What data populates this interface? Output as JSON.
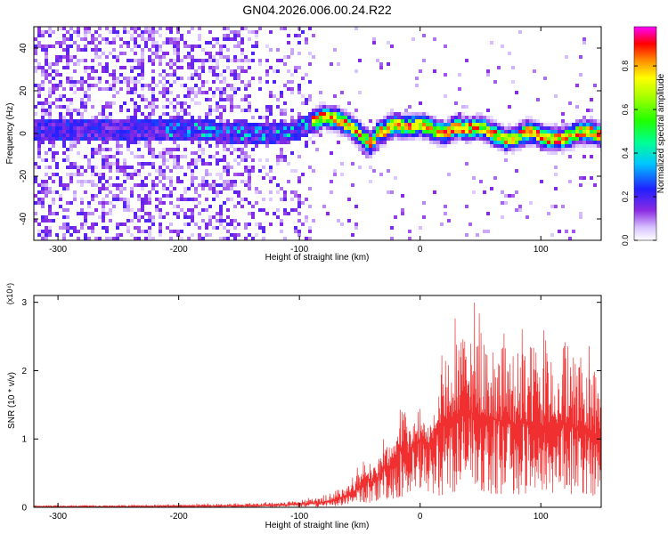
{
  "figure_title": "GN04.2026.006.00.24.R22",
  "chart_data": [
    {
      "type": "heatmap",
      "xlabel": "Height of straight line (km)",
      "ylabel": "Frequency (Hz)",
      "xlim": [
        -320,
        150
      ],
      "ylim": [
        -50,
        50
      ],
      "xticks": [
        -300,
        -200,
        -100,
        0,
        100
      ],
      "yticks": [
        -40,
        -20,
        0,
        20,
        40
      ],
      "grid": false,
      "colorbar": {
        "label": "Normalized spectral amplitude",
        "range": [
          0,
          0.98
        ],
        "ticks": [
          0.0,
          0.2,
          0.4,
          0.6,
          0.8
        ],
        "tick_labels": [
          "0.0",
          "0.2",
          "0.4",
          "0.6",
          "0.8"
        ],
        "colormap": "rainbow-white"
      },
      "ridge": {
        "x": [
          -320,
          -200,
          -150,
          -110,
          -90,
          -80,
          -70,
          -60,
          -50,
          -45,
          -40,
          -35,
          -30,
          -25,
          -20,
          -10,
          0,
          10,
          20,
          30,
          40,
          50,
          60,
          70,
          80,
          90,
          100,
          110,
          120,
          130,
          140,
          150
        ],
        "y": [
          2,
          2,
          0,
          0,
          5,
          8,
          7,
          4,
          0,
          -3,
          -5,
          0,
          1,
          3,
          4,
          3,
          4,
          2,
          0,
          3,
          2,
          3,
          0,
          -3,
          -2,
          1,
          -1,
          -3,
          -2,
          0,
          1,
          -1
        ]
      },
      "noise_region_x": [
        -320,
        -90
      ]
    },
    {
      "type": "line",
      "xlabel": "Height of straight line (km)",
      "ylabel": "SNR (10 * v/v)",
      "y_multiplier": "(x10⁴)",
      "xlim": [
        -320,
        150
      ],
      "ylim": [
        0,
        3.1
      ],
      "xticks": [
        -300,
        -200,
        -100,
        0,
        100
      ],
      "yticks": [
        0,
        1,
        2,
        3
      ],
      "grid": false,
      "color": "#f03030",
      "envelope": {
        "x": [
          -320,
          -250,
          -200,
          -150,
          -120,
          -100,
          -80,
          -70,
          -60,
          -50,
          -45,
          -40,
          -35,
          -30,
          -25,
          -20,
          -15,
          -10,
          -5,
          0,
          5,
          10,
          15,
          20,
          30,
          40,
          50,
          60,
          70,
          80,
          90,
          100,
          110,
          120,
          130,
          140,
          150
        ],
        "upper": [
          0.03,
          0.04,
          0.05,
          0.07,
          0.09,
          0.12,
          0.18,
          0.3,
          0.4,
          0.65,
          0.95,
          0.65,
          0.8,
          1.1,
          1.0,
          1.25,
          1.9,
          1.35,
          1.45,
          1.6,
          1.25,
          1.4,
          1.9,
          2.5,
          2.8,
          3.05,
          3.0,
          2.85,
          2.7,
          2.6,
          2.75,
          2.6,
          2.65,
          2.85,
          2.55,
          2.55,
          2.2
        ],
        "mean": [
          0.01,
          0.01,
          0.015,
          0.02,
          0.03,
          0.05,
          0.07,
          0.12,
          0.18,
          0.3,
          0.45,
          0.35,
          0.45,
          0.6,
          0.6,
          0.75,
          0.9,
          0.8,
          0.9,
          1.0,
          0.9,
          1.0,
          1.1,
          1.25,
          1.35,
          1.4,
          1.35,
          1.3,
          1.25,
          1.2,
          1.25,
          1.2,
          1.2,
          1.25,
          1.15,
          1.15,
          1.0
        ]
      }
    }
  ]
}
